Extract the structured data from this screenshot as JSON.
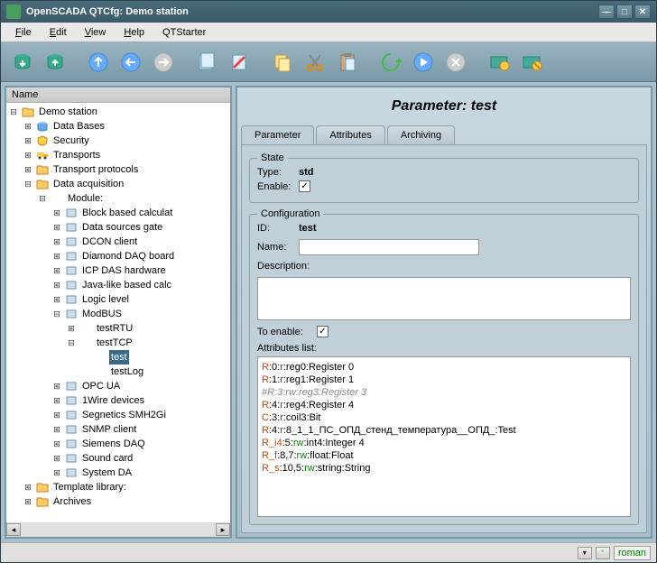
{
  "window": {
    "title": "OpenSCADA QTCfg: Demo station"
  },
  "menu": {
    "file": "File",
    "edit": "Edit",
    "view": "View",
    "help": "Help",
    "qtstarter": "QTStarter"
  },
  "tree": {
    "header": "Name",
    "root": "Demo station",
    "items": [
      {
        "label": "Data Bases",
        "icon": "db"
      },
      {
        "label": "Security",
        "icon": "shield"
      },
      {
        "label": "Transports",
        "icon": "truck"
      },
      {
        "label": "Transport protocols",
        "icon": "folder"
      },
      {
        "label": "Data acquisition",
        "icon": "folder",
        "expanded": true
      }
    ],
    "daq_module": "Module:",
    "modules": [
      "Block based calculat",
      "Data sources gate",
      "DCON client",
      "Diamond DAQ board",
      "ICP DAS hardware",
      "Java-like based calc",
      "Logic level",
      "ModBUS"
    ],
    "modbus_items": [
      "testRTU",
      "testTCP"
    ],
    "testtcp_items": [
      "test",
      "testLog"
    ],
    "after_modbus": [
      "OPC UA",
      "1Wire devices",
      "Segnetics SMH2Gi",
      "SNMP client",
      "Siemens DAQ",
      "Sound card",
      "System DA"
    ],
    "after_daq": [
      "Template library:",
      "Archives"
    ]
  },
  "content": {
    "title": "Parameter: test",
    "tabs": {
      "parameter": "Parameter",
      "attributes": "Attributes",
      "archiving": "Archiving"
    },
    "state": {
      "title": "State",
      "type_label": "Type:",
      "type_value": "std",
      "enable_label": "Enable:",
      "enabled": true
    },
    "config": {
      "title": "Configuration",
      "id_label": "ID:",
      "id_value": "test",
      "name_label": "Name:",
      "name_value": "",
      "desc_label": "Description:",
      "desc_value": "",
      "toenable_label": "To enable:",
      "toenable": true,
      "attrs_label": "Attributes list:",
      "attrs": [
        {
          "text": "R:0:r:reg0:Register 0",
          "parts": [
            {
              "t": "R",
              "c": "red"
            },
            {
              "t": ":0:"
            },
            {
              "t": "r",
              "c": "green"
            },
            {
              "t": ":reg0:Register 0"
            }
          ]
        },
        {
          "text": "R:1:r:reg1:Register 1",
          "parts": [
            {
              "t": "R",
              "c": "red"
            },
            {
              "t": ":1:"
            },
            {
              "t": "r",
              "c": "green"
            },
            {
              "t": ":reg1:Register 1"
            }
          ]
        },
        {
          "text": "#R:3:rw:reg3:Register 3",
          "gray": true
        },
        {
          "text": "R:4:r:reg4:Register 4",
          "parts": [
            {
              "t": "R",
              "c": "red"
            },
            {
              "t": ":4:"
            },
            {
              "t": "r",
              "c": "green"
            },
            {
              "t": ":reg4:Register 4"
            }
          ]
        },
        {
          "text": "C:3:r:coil3:Bit",
          "parts": [
            {
              "t": "C",
              "c": "red"
            },
            {
              "t": ":3:"
            },
            {
              "t": "r",
              "c": "green"
            },
            {
              "t": ":coil3:Bit"
            }
          ]
        },
        {
          "text": "R:4:r:8_1_1_ПС_ОПД_стенд_температура__ОПД_:Test",
          "parts": [
            {
              "t": "R",
              "c": "red"
            },
            {
              "t": ":4:"
            },
            {
              "t": "r",
              "c": "green"
            },
            {
              "t": ":8_1_1_ПС_ОПД_стенд_температура__ОПД_:Test"
            }
          ]
        },
        {
          "text": "R_i4:5:rw:int4:Integer 4",
          "parts": [
            {
              "t": "R_i4",
              "c": "red"
            },
            {
              "t": ":5:"
            },
            {
              "t": "rw",
              "c": "green"
            },
            {
              "t": ":int4:Integer 4"
            }
          ]
        },
        {
          "text": "R_f:8,7:rw:float:Float",
          "parts": [
            {
              "t": "R_f",
              "c": "red"
            },
            {
              "t": ":8,7:"
            },
            {
              "t": "rw",
              "c": "green"
            },
            {
              "t": ":float:Float"
            }
          ]
        },
        {
          "text": "R_s:10,5:rw:string:String",
          "parts": [
            {
              "t": "R_s",
              "c": "red"
            },
            {
              "t": ":10,5:"
            },
            {
              "t": "rw",
              "c": "green"
            },
            {
              "t": ":string:String"
            }
          ]
        }
      ]
    }
  },
  "status": {
    "user": "roman"
  }
}
